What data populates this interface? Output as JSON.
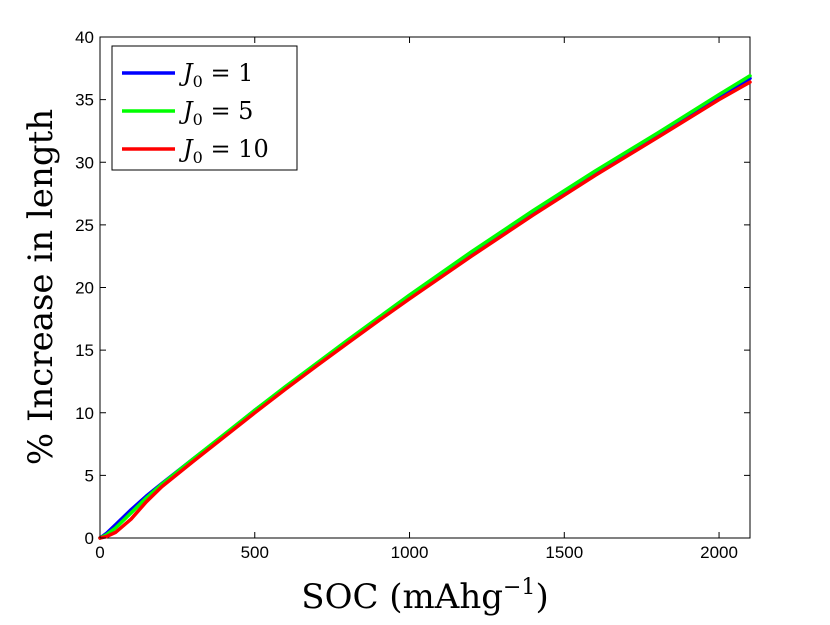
{
  "chart_data": {
    "type": "line",
    "xlabel": "SOC (mAhg",
    "xlabel_sup": "−1",
    "xlabel_close": ")",
    "ylabel": "% Increase in length",
    "xlim": [
      0,
      2100
    ],
    "ylim": [
      0,
      40
    ],
    "xticks": [
      0,
      500,
      1000,
      1500,
      2000
    ],
    "yticks": [
      0,
      5,
      10,
      15,
      20,
      25,
      30,
      35,
      40
    ],
    "legend_position": "top-left",
    "series": [
      {
        "name": "J0 = 1",
        "label_var": "J",
        "label_sub": "0",
        "label_rest": " = 1",
        "color": "#0000ff",
        "x": [
          0,
          20,
          50,
          100,
          150,
          200,
          300,
          400,
          500,
          600,
          700,
          800,
          900,
          1000,
          1200,
          1400,
          1600,
          1800,
          2000,
          2100
        ],
        "y": [
          0,
          0.35,
          1.05,
          2.25,
          3.35,
          4.35,
          6.3,
          8.2,
          10.2,
          12.05,
          13.9,
          15.7,
          17.5,
          19.25,
          22.7,
          26.0,
          29.1,
          32.1,
          35.2,
          36.7
        ]
      },
      {
        "name": "J0 = 5",
        "label_var": "J",
        "label_sub": "0",
        "label_rest": " = 5",
        "color": "#00ff00",
        "x": [
          0,
          20,
          50,
          100,
          150,
          200,
          300,
          400,
          500,
          600,
          700,
          800,
          900,
          1000,
          1200,
          1400,
          1600,
          1800,
          2000,
          2100
        ],
        "y": [
          0,
          0.25,
          0.8,
          2.0,
          3.2,
          4.3,
          6.3,
          8.25,
          10.2,
          12.1,
          13.95,
          15.8,
          17.6,
          19.4,
          22.85,
          26.15,
          29.3,
          32.3,
          35.4,
          36.9
        ]
      },
      {
        "name": "J0 = 10",
        "label_var": "J",
        "label_sub": "0",
        "label_rest": " = 10",
        "color": "#ff0000",
        "x": [
          0,
          20,
          50,
          100,
          150,
          200,
          300,
          400,
          500,
          600,
          700,
          800,
          900,
          1000,
          1200,
          1400,
          1600,
          1800,
          2000,
          2100
        ],
        "y": [
          0,
          0.1,
          0.45,
          1.5,
          2.9,
          4.1,
          6.1,
          8.05,
          10.0,
          11.9,
          13.75,
          15.55,
          17.35,
          19.1,
          22.5,
          25.8,
          28.95,
          31.95,
          35.0,
          36.4
        ]
      }
    ]
  }
}
